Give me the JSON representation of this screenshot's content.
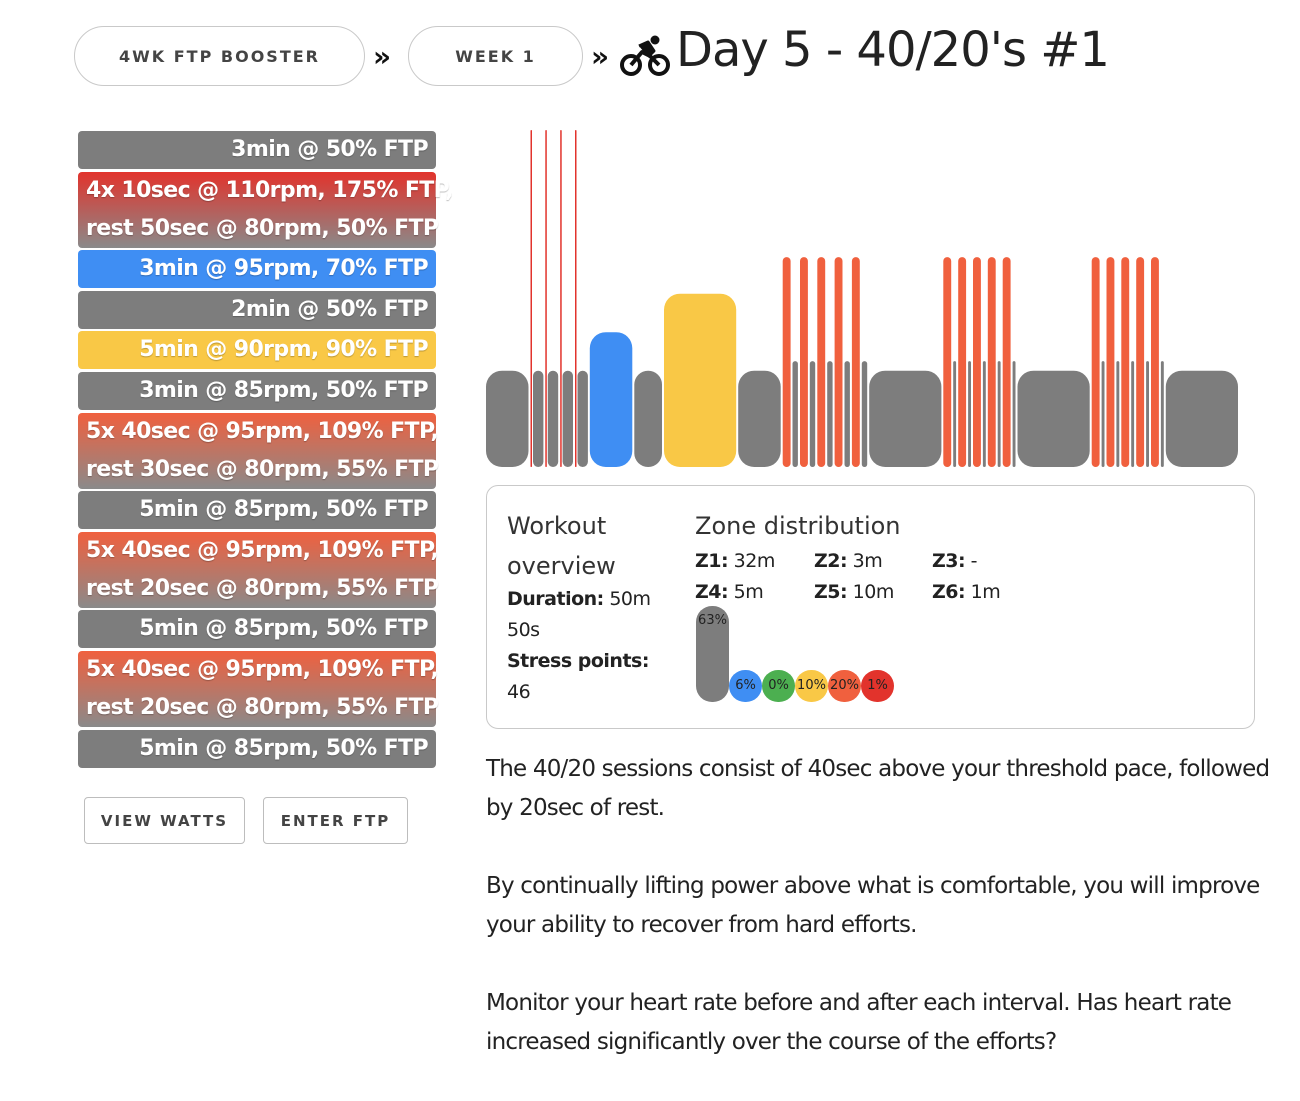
{
  "breadcrumb": {
    "plan_label": "4WK FTP BOOSTER",
    "week_label": "WEEK 1",
    "separator": "»"
  },
  "page_title": "Day 5 - 40/20's #1",
  "icons": {
    "title_icon": "bicycle-rider-icon"
  },
  "colors": {
    "z1": "#7d7d7d",
    "z2": "#3f8ef3",
    "z3": "#4caf50",
    "z4": "#f9c846",
    "z5": "#f0603e",
    "z6": "#e2332c"
  },
  "steps": [
    {
      "zone": "z1",
      "lines": [
        "3min @ 50% FTP"
      ]
    },
    {
      "zone": "z6",
      "lines": [
        "4x 10sec @ 110rpm, 175% FTP,",
        "rest 50sec @ 80rpm, 50% FTP"
      ]
    },
    {
      "zone": "z2",
      "lines": [
        "3min @ 95rpm, 70% FTP"
      ]
    },
    {
      "zone": "z1",
      "lines": [
        "2min @ 50% FTP"
      ]
    },
    {
      "zone": "z4",
      "lines": [
        "5min @ 90rpm, 90% FTP"
      ]
    },
    {
      "zone": "z1",
      "lines": [
        "3min @ 85rpm, 50% FTP"
      ]
    },
    {
      "zone": "z5",
      "lines": [
        "5x 40sec @ 95rpm, 109% FTP,",
        "rest 30sec @ 80rpm, 55% FTP"
      ]
    },
    {
      "zone": "z1",
      "lines": [
        "5min @ 85rpm, 50% FTP"
      ]
    },
    {
      "zone": "z5",
      "lines": [
        "5x 40sec @ 95rpm, 109% FTP,",
        "rest 20sec @ 80rpm, 55% FTP"
      ]
    },
    {
      "zone": "z1",
      "lines": [
        "5min @ 85rpm, 50% FTP"
      ]
    },
    {
      "zone": "z5",
      "lines": [
        "5x 40sec @ 95rpm, 109% FTP,",
        "rest 20sec @ 80rpm, 55% FTP"
      ]
    },
    {
      "zone": "z1",
      "lines": [
        "5min @ 85rpm, 50% FTP"
      ]
    }
  ],
  "buttons": {
    "view_watts": "VIEW WATTS",
    "enter_ftp": "ENTER FTP"
  },
  "overview": {
    "title": "Workout overview",
    "duration_label": "Duration:",
    "duration_value": "50m 50s",
    "stress_label": "Stress points:",
    "stress_value": "46"
  },
  "zone_distribution": {
    "title": "Zone distribution",
    "zones": [
      {
        "label": "Z1:",
        "value": "32m"
      },
      {
        "label": "Z2:",
        "value": "3m"
      },
      {
        "label": "Z3:",
        "value": "-"
      },
      {
        "label": "Z4:",
        "value": "5m"
      },
      {
        "label": "Z5:",
        "value": "10m"
      },
      {
        "label": "Z6:",
        "value": "1m"
      }
    ],
    "percentages": [
      {
        "zone": "z1",
        "pct": 63,
        "label": "63%"
      },
      {
        "zone": "z2",
        "pct": 6,
        "label": "6%"
      },
      {
        "zone": "z3",
        "pct": 0,
        "label": "0%"
      },
      {
        "zone": "z4",
        "pct": 10,
        "label": "10%"
      },
      {
        "zone": "z5",
        "pct": 20,
        "label": "20%"
      },
      {
        "zone": "z6",
        "pct": 1,
        "label": "1%"
      }
    ]
  },
  "description": [
    "The 40/20 sessions consist of 40sec above your threshold pace, followed by 20sec of rest.",
    "By continually lifting power above what is comfortable, you will improve your ability to recover from hard efforts.",
    "Monitor your heart rate before and after each interval. Has heart rate increased significantly over the course of the efforts?"
  ],
  "chart_data": {
    "type": "bar",
    "x_unit": "seconds",
    "y_unit": "% FTP",
    "segments": [
      {
        "start": 0,
        "duration": 180,
        "power": 50,
        "zone": "z1"
      },
      {
        "start": 180,
        "duration": 10,
        "power": 175,
        "zone": "z6"
      },
      {
        "start": 190,
        "duration": 50,
        "power": 50,
        "zone": "z1"
      },
      {
        "start": 240,
        "duration": 10,
        "power": 175,
        "zone": "z6"
      },
      {
        "start": 250,
        "duration": 50,
        "power": 50,
        "zone": "z1"
      },
      {
        "start": 300,
        "duration": 10,
        "power": 175,
        "zone": "z6"
      },
      {
        "start": 310,
        "duration": 50,
        "power": 50,
        "zone": "z1"
      },
      {
        "start": 360,
        "duration": 10,
        "power": 175,
        "zone": "z6"
      },
      {
        "start": 370,
        "duration": 50,
        "power": 50,
        "zone": "z1"
      },
      {
        "start": 420,
        "duration": 180,
        "power": 70,
        "zone": "z2"
      },
      {
        "start": 600,
        "duration": 120,
        "power": 50,
        "zone": "z1"
      },
      {
        "start": 720,
        "duration": 300,
        "power": 90,
        "zone": "z4"
      },
      {
        "start": 1020,
        "duration": 180,
        "power": 50,
        "zone": "z1"
      },
      {
        "start": 1200,
        "duration": 40,
        "power": 109,
        "zone": "z5"
      },
      {
        "start": 1240,
        "duration": 30,
        "power": 55,
        "zone": "z1"
      },
      {
        "start": 1270,
        "duration": 40,
        "power": 109,
        "zone": "z5"
      },
      {
        "start": 1310,
        "duration": 30,
        "power": 55,
        "zone": "z1"
      },
      {
        "start": 1340,
        "duration": 40,
        "power": 109,
        "zone": "z5"
      },
      {
        "start": 1380,
        "duration": 30,
        "power": 55,
        "zone": "z1"
      },
      {
        "start": 1410,
        "duration": 40,
        "power": 109,
        "zone": "z5"
      },
      {
        "start": 1450,
        "duration": 30,
        "power": 55,
        "zone": "z1"
      },
      {
        "start": 1480,
        "duration": 40,
        "power": 109,
        "zone": "z5"
      },
      {
        "start": 1520,
        "duration": 30,
        "power": 55,
        "zone": "z1"
      },
      {
        "start": 1550,
        "duration": 300,
        "power": 50,
        "zone": "z1"
      },
      {
        "start": 1850,
        "duration": 40,
        "power": 109,
        "zone": "z5"
      },
      {
        "start": 1890,
        "duration": 20,
        "power": 55,
        "zone": "z1"
      },
      {
        "start": 1910,
        "duration": 40,
        "power": 109,
        "zone": "z5"
      },
      {
        "start": 1950,
        "duration": 20,
        "power": 55,
        "zone": "z1"
      },
      {
        "start": 1970,
        "duration": 40,
        "power": 109,
        "zone": "z5"
      },
      {
        "start": 2010,
        "duration": 20,
        "power": 55,
        "zone": "z1"
      },
      {
        "start": 2030,
        "duration": 40,
        "power": 109,
        "zone": "z5"
      },
      {
        "start": 2070,
        "duration": 20,
        "power": 55,
        "zone": "z1"
      },
      {
        "start": 2090,
        "duration": 40,
        "power": 109,
        "zone": "z5"
      },
      {
        "start": 2130,
        "duration": 20,
        "power": 55,
        "zone": "z1"
      },
      {
        "start": 2150,
        "duration": 300,
        "power": 50,
        "zone": "z1"
      },
      {
        "start": 2450,
        "duration": 40,
        "power": 109,
        "zone": "z5"
      },
      {
        "start": 2490,
        "duration": 20,
        "power": 55,
        "zone": "z1"
      },
      {
        "start": 2510,
        "duration": 40,
        "power": 109,
        "zone": "z5"
      },
      {
        "start": 2550,
        "duration": 20,
        "power": 55,
        "zone": "z1"
      },
      {
        "start": 2570,
        "duration": 40,
        "power": 109,
        "zone": "z5"
      },
      {
        "start": 2610,
        "duration": 20,
        "power": 55,
        "zone": "z1"
      },
      {
        "start": 2630,
        "duration": 40,
        "power": 109,
        "zone": "z5"
      },
      {
        "start": 2670,
        "duration": 20,
        "power": 55,
        "zone": "z1"
      },
      {
        "start": 2690,
        "duration": 40,
        "power": 109,
        "zone": "z5"
      },
      {
        "start": 2730,
        "duration": 20,
        "power": 55,
        "zone": "z1"
      },
      {
        "start": 2750,
        "duration": 300,
        "power": 50,
        "zone": "z1"
      }
    ]
  }
}
